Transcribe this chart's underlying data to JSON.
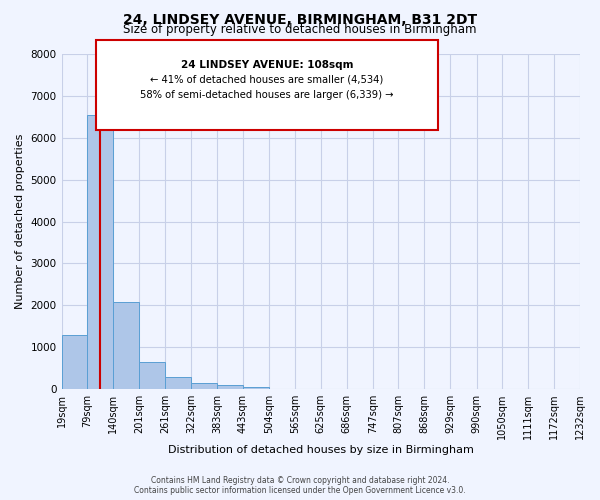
{
  "title": "24, LINDSEY AVENUE, BIRMINGHAM, B31 2DT",
  "subtitle": "Size of property relative to detached houses in Birmingham",
  "xlabel": "Distribution of detached houses by size in Birmingham",
  "ylabel": "Number of detached properties",
  "bin_edges": [
    19,
    79,
    140,
    201,
    261,
    322,
    383,
    443,
    504,
    565,
    625,
    686,
    747,
    807,
    868,
    929,
    990,
    1050,
    1111,
    1172,
    1232
  ],
  "bin_heights": [
    1300,
    6550,
    2080,
    650,
    300,
    140,
    100,
    60,
    0,
    0,
    0,
    0,
    0,
    0,
    0,
    0,
    0,
    0,
    0,
    0
  ],
  "bar_color": "#aec6e8",
  "bar_edgecolor": "#5a9fd4",
  "property_size": 108,
  "vline_color": "#cc0000",
  "ylim": [
    0,
    8000
  ],
  "annotation_title": "24 LINDSEY AVENUE: 108sqm",
  "annotation_line1": "← 41% of detached houses are smaller (4,534)",
  "annotation_line2": "58% of semi-detached houses are larger (6,339) →",
  "annotation_box_color": "#ffffff",
  "annotation_box_edgecolor": "#cc0000",
  "footer_line1": "Contains HM Land Registry data © Crown copyright and database right 2024.",
  "footer_line2": "Contains public sector information licensed under the Open Government Licence v3.0.",
  "tick_labels": [
    "19sqm",
    "79sqm",
    "140sqm",
    "201sqm",
    "261sqm",
    "322sqm",
    "383sqm",
    "443sqm",
    "504sqm",
    "565sqm",
    "625sqm",
    "686sqm",
    "747sqm",
    "807sqm",
    "868sqm",
    "929sqm",
    "990sqm",
    "1050sqm",
    "1111sqm",
    "1172sqm",
    "1232sqm"
  ],
  "background_color": "#f0f4ff",
  "grid_color": "#c8d0e8"
}
